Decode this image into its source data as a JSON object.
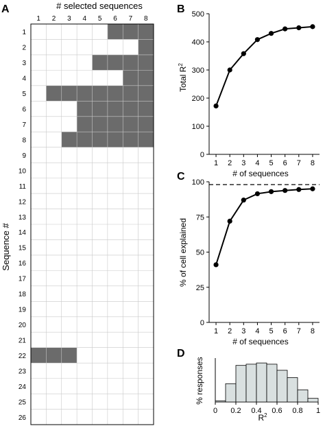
{
  "chart_data": [
    {
      "panel": "A",
      "type": "heatmap",
      "title": "# selected sequences",
      "ylabel": "Sequence #",
      "columns": [
        "1",
        "2",
        "3",
        "4",
        "5",
        "6",
        "7",
        "8"
      ],
      "rows": [
        "1",
        "2",
        "3",
        "4",
        "5",
        "6",
        "7",
        "8",
        "9",
        "10",
        "11",
        "12",
        "13",
        "14",
        "15",
        "16",
        "17",
        "18",
        "19",
        "20",
        "21",
        "22",
        "23",
        "24",
        "25",
        "26"
      ],
      "filled": [
        {
          "row": 1,
          "from_col": 6,
          "to_col": 8
        },
        {
          "row": 2,
          "from_col": 8,
          "to_col": 8
        },
        {
          "row": 3,
          "from_col": 5,
          "to_col": 8
        },
        {
          "row": 4,
          "from_col": 7,
          "to_col": 8
        },
        {
          "row": 5,
          "from_col": 2,
          "to_col": 8
        },
        {
          "row": 6,
          "from_col": 4,
          "to_col": 8
        },
        {
          "row": 7,
          "from_col": 4,
          "to_col": 8
        },
        {
          "row": 8,
          "from_col": 3,
          "to_col": 8
        },
        {
          "row": 22,
          "from_col": 1,
          "to_col": 3
        }
      ],
      "fill_color": "#6b6b6b"
    },
    {
      "panel": "B",
      "type": "line",
      "xlabel": "# of sequences",
      "ylabel": "Total R",
      "ylabel_sup": "2",
      "x": [
        1,
        2,
        3,
        4,
        5,
        6,
        7,
        8
      ],
      "values": [
        172,
        300,
        358,
        408,
        430,
        446,
        450,
        454
      ],
      "xlim": [
        0.5,
        8.5
      ],
      "ylim": [
        0,
        500
      ],
      "yticks": [
        0,
        100,
        200,
        300,
        400,
        500
      ]
    },
    {
      "panel": "C",
      "type": "line",
      "xlabel": "# of sequences",
      "ylabel": "% of cell explained",
      "x": [
        1,
        2,
        3,
        4,
        5,
        6,
        7,
        8
      ],
      "values": [
        41,
        72,
        87,
        91.5,
        93,
        93.8,
        94.5,
        95
      ],
      "reference_line": 98,
      "xlim": [
        0.5,
        8.5
      ],
      "ylim": [
        0,
        100
      ],
      "yticks": [
        0,
        25,
        50,
        75,
        100
      ]
    },
    {
      "panel": "D",
      "type": "bar",
      "xlabel": "R",
      "xlabel_sup": "2",
      "ylabel": "% responses",
      "bin_edges": [
        0,
        0.1,
        0.2,
        0.3,
        0.4,
        0.5,
        0.6,
        0.7,
        0.8,
        0.9,
        1.0
      ],
      "values": [
        0.5,
        7.5,
        15,
        15.5,
        16,
        15.5,
        13,
        10,
        5,
        1.5
      ],
      "xticks": [
        0,
        0.2,
        0.4,
        0.6,
        0.8,
        1
      ],
      "xtick_labels": [
        "0",
        "0.2",
        "0.4",
        "0.6",
        "0.8",
        "1"
      ],
      "bar_color": "#d9e0e0"
    }
  ],
  "labels": {
    "A": "A",
    "B": "B",
    "C": "C",
    "D": "D"
  }
}
